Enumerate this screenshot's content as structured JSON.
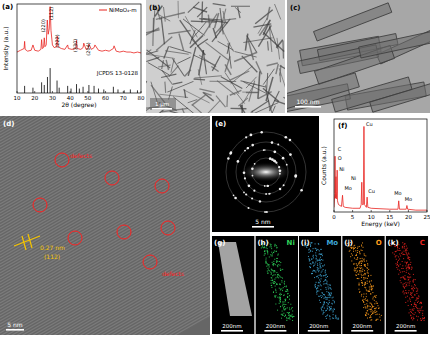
{
  "chart_data": [
    {
      "type": "line",
      "title": "(a)",
      "x_label": "2θ (degree)",
      "y_label": "Intensity (a.u.)",
      "xlim": [
        10,
        80
      ],
      "xticks": [
        10,
        20,
        30,
        40,
        50,
        60,
        70,
        80
      ],
      "ylim": [
        0,
        100
      ],
      "tick_labels": "x",
      "legend": "upper right",
      "series": [
        {
          "name": "NiMoO₄-m",
          "type": "line",
          "color": "#e8231f",
          "x": [
            10,
            12,
            14,
            14.3,
            14.6,
            16,
            18,
            19,
            20,
            22,
            23.5,
            23.9,
            24.3,
            25,
            25.4,
            25.8,
            26.5,
            27.1,
            27.6,
            28.2,
            28.7,
            29.2,
            30,
            31,
            32.3,
            32.7,
            33.1,
            35,
            37,
            38.6,
            39,
            41,
            43.2,
            43.6,
            44,
            46,
            47.3,
            47.7,
            49,
            50.2,
            50.6,
            52,
            53.5,
            54,
            56,
            58,
            60,
            62,
            64.4,
            64.8,
            66,
            68,
            70,
            72,
            74,
            76,
            78,
            80
          ],
          "values": [
            46,
            48,
            50,
            58,
            49,
            47,
            48,
            54,
            48,
            47,
            49,
            60,
            50,
            51,
            62,
            52,
            54,
            82,
            66,
            72,
            97,
            70,
            54,
            51,
            52,
            64,
            52,
            50,
            49,
            54,
            50,
            49,
            50,
            59,
            50,
            49,
            51,
            56,
            49,
            50,
            55,
            49,
            51,
            54,
            48,
            47,
            48,
            47,
            50,
            53,
            47,
            46,
            47,
            46,
            46,
            45,
            46,
            45
          ]
        },
        {
          "name": "JCPDS 13-0128",
          "type": "stick",
          "color": "#000000",
          "x": [
            14.3,
            19,
            23.9,
            25.4,
            27.2,
            28.7,
            32.6,
            33.8,
            38.6,
            40.5,
            43.6,
            45.2,
            47.3,
            50.6,
            53.5,
            56,
            59,
            64.4,
            67,
            70.5,
            74,
            78
          ],
          "values": [
            8,
            6,
            12,
            9,
            18,
            28,
            14,
            6,
            8,
            5,
            10,
            5,
            7,
            9,
            8,
            5,
            4,
            7,
            4,
            3,
            4,
            3
          ]
        }
      ],
      "annotations": [
        {
          "text": "(112)",
          "x": 30.3,
          "y": 97
        },
        {
          "text": "(220)",
          "x": 25.8,
          "y": 83
        },
        {
          "text": "(222)",
          "x": 33.5,
          "y": 66
        },
        {
          "text": "(330)",
          "x": 43.9,
          "y": 61
        },
        {
          "text": "(204)",
          "x": 51,
          "y": 57
        }
      ]
    },
    {
      "type": "line",
      "title": "(f)",
      "x_label": "Energy (keV)",
      "y_label": "Counts (a.u.)",
      "xlim": [
        0,
        25
      ],
      "xticks": [
        0,
        5,
        10,
        15,
        20,
        25
      ],
      "ylim": [
        0,
        100
      ],
      "tick_labels": "x",
      "series": [
        {
          "type": "line",
          "color": "#e8231f",
          "x": [
            0,
            0.2,
            0.28,
            0.36,
            0.45,
            0.52,
            0.6,
            0.78,
            0.85,
            0.93,
            1.2,
            2.0,
            2.29,
            2.5,
            3,
            5,
            7,
            7.3,
            7.47,
            7.6,
            7.9,
            8.05,
            8.2,
            8.7,
            8.9,
            9.1,
            10,
            15,
            17.2,
            17.4,
            17.6,
            19.4,
            19.6,
            19.8,
            22,
            25
          ],
          "values": [
            5,
            20,
            60,
            20,
            15,
            38,
            14,
            22,
            45,
            12,
            8,
            6,
            18,
            6,
            5,
            4,
            4,
            8,
            32,
            8,
            8,
            92,
            8,
            5,
            16,
            5,
            4,
            3,
            3,
            12,
            3,
            3,
            7,
            3,
            2,
            2
          ]
        }
      ],
      "annotations": [
        {
          "text": "C",
          "x": 1.0,
          "y": 66
        },
        {
          "text": "O",
          "x": 1.0,
          "y": 56
        },
        {
          "text": "Ni",
          "x": 1.4,
          "y": 44
        },
        {
          "text": "Mo",
          "x": 2.8,
          "y": 24
        },
        {
          "text": "Cu",
          "x": 8.6,
          "y": 93
        },
        {
          "text": "Ni",
          "x": 4.6,
          "y": 34
        },
        {
          "text": "Cu",
          "x": 9.2,
          "y": 20
        },
        {
          "text": "Mo",
          "x": 16.2,
          "y": 18
        },
        {
          "text": "Mo",
          "x": 19.0,
          "y": 12
        }
      ]
    }
  ],
  "images": [
    {
      "label": "(b)",
      "scale_bar": "1 μm"
    },
    {
      "label": "(c)",
      "scale_bar": "100 nm"
    },
    {
      "label": "(d)",
      "scale_bar": "5 nm",
      "annotations": [
        "0.27 nm",
        "(112)",
        "defects",
        "defects"
      ]
    },
    {
      "label": "(e)",
      "scale_bar": "5 nm"
    },
    {
      "label": "(g)",
      "scale_bar": "200nm",
      "color": "#d9d9d9"
    },
    {
      "label": "(h)",
      "element": "Ni",
      "scale_bar": "200nm",
      "color": "#2fd35a"
    },
    {
      "label": "(i)",
      "element": "Mo",
      "scale_bar": "200nm",
      "color": "#3fa7d6"
    },
    {
      "label": "(j)",
      "element": "O",
      "scale_bar": "200nm",
      "color": "#ff9d1e"
    },
    {
      "label": "(k)",
      "element": "C",
      "scale_bar": "200nm",
      "color": "#e8231f"
    }
  ]
}
